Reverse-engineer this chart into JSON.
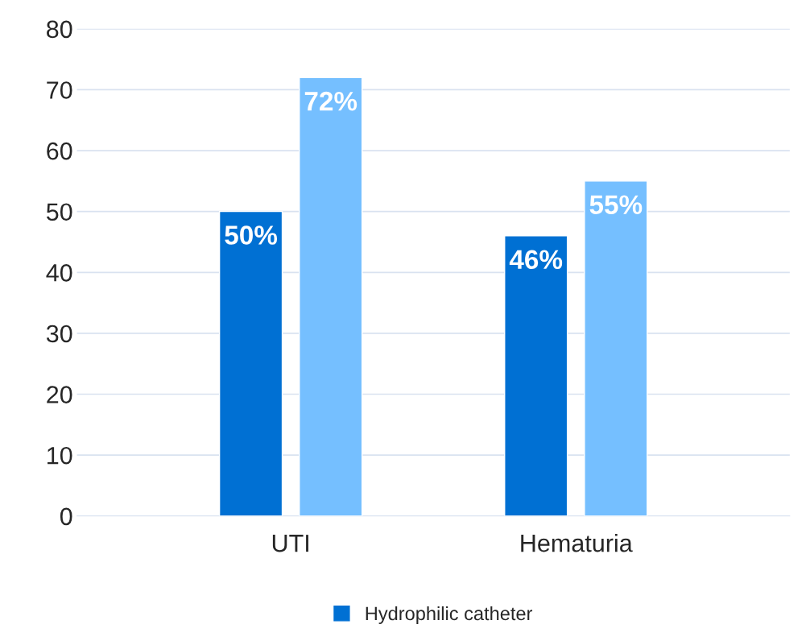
{
  "chart_data": {
    "type": "bar",
    "categories": [
      "UTI",
      "Hematuria"
    ],
    "series": [
      {
        "name": "Hydrophilic catheter",
        "color": "#0070d3",
        "values": [
          50,
          46
        ],
        "value_labels": [
          "50%",
          "46%"
        ]
      },
      {
        "color": "#75bfff",
        "values": [
          72,
          55
        ],
        "value_labels": [
          "72%",
          "55%"
        ]
      }
    ],
    "ylim": [
      0,
      80
    ],
    "yticks": [
      0,
      10,
      20,
      30,
      40,
      50,
      60,
      70,
      80
    ],
    "grid": "y",
    "legend": "bottom"
  }
}
